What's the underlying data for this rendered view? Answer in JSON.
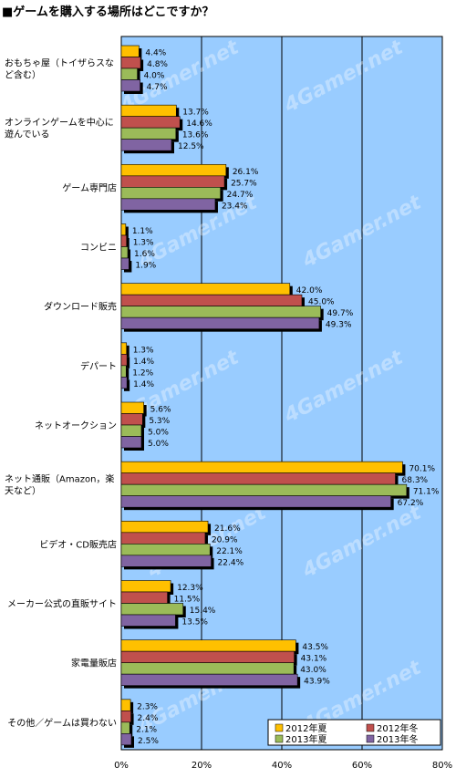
{
  "title": "■ゲームを購入する場所はどこですか？",
  "watermark": "4Gamer.net",
  "colors": {
    "plot_bg": "#99ccff",
    "series": [
      "#ffc000",
      "#c0504d",
      "#9bbb59",
      "#8064a2"
    ],
    "shadow": "#000000"
  },
  "chart_data": {
    "type": "bar",
    "orientation": "horizontal",
    "title": "■ゲームを購入する場所はどこですか？",
    "xlim": [
      0,
      80
    ],
    "xticks": [
      "0%",
      "20%",
      "40%",
      "60%",
      "80%"
    ],
    "grid": true,
    "legend_position": "bottom-right",
    "categories": [
      "おもちゃ屋（トイザらスなど含む）",
      "オンラインゲームを中心に遊んでいる",
      "ゲーム専門店",
      "コンビニ",
      "ダウンロード販売",
      "デパート",
      "ネットオークション",
      "ネット通販（Amazon，楽天など）",
      "ビデオ・CD販売店",
      "メーカー公式の直販サイト",
      "家電量販店",
      "その他／ゲームは買わない"
    ],
    "series": [
      {
        "name": "2012年夏",
        "values": [
          4.4,
          13.7,
          26.1,
          1.1,
          42.0,
          1.3,
          5.6,
          70.1,
          21.6,
          12.3,
          43.5,
          2.3
        ],
        "labels": [
          "4.4%",
          "13.7%",
          "26.1%",
          "1.1%",
          "42.0%",
          "1.3%",
          "5.6%",
          "70.1%",
          "21.6%",
          "12.3%",
          "43.5%",
          "2.3%"
        ]
      },
      {
        "name": "2012年冬",
        "values": [
          4.8,
          14.6,
          25.7,
          1.3,
          45.0,
          1.4,
          5.3,
          68.3,
          20.9,
          11.5,
          43.1,
          2.4
        ],
        "labels": [
          "4.8%",
          "14.6%",
          "25.7%",
          "1.3%",
          "45.0%",
          "1.4%",
          "5.3%",
          "68.3%",
          "20.9%",
          "11.5%",
          "43.1%",
          "2.4%"
        ]
      },
      {
        "name": "2013年夏",
        "values": [
          4.0,
          13.6,
          24.7,
          1.6,
          49.7,
          1.2,
          5.0,
          71.1,
          22.1,
          15.4,
          43.0,
          2.1
        ],
        "labels": [
          "4.0%",
          "13.6%",
          "24.7%",
          "1.6%",
          "49.7%",
          "1.2%",
          "5.0%",
          "71.1%",
          "22.1%",
          "15.4%",
          "43.0%",
          "2.1%"
        ]
      },
      {
        "name": "2013年冬",
        "values": [
          4.7,
          12.5,
          23.4,
          1.9,
          49.3,
          1.4,
          5.0,
          67.2,
          22.4,
          13.5,
          43.9,
          2.5
        ],
        "labels": [
          "4.7%",
          "12.5%",
          "23.4%",
          "1.9%",
          "49.3%",
          "1.4%",
          "5.0%",
          "67.2%",
          "22.4%",
          "13.5%",
          "43.9%",
          "2.5%"
        ]
      }
    ]
  }
}
